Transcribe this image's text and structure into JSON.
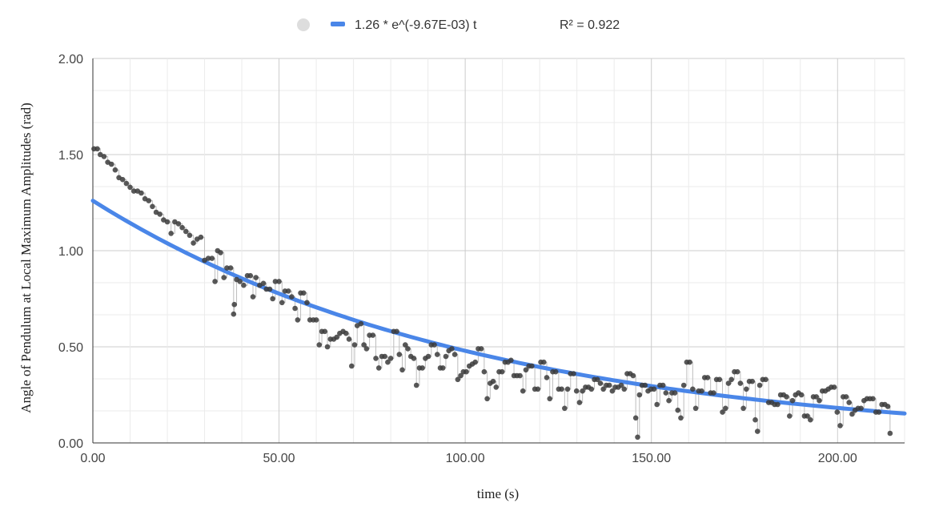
{
  "chart_data": {
    "type": "scatter",
    "title": "",
    "xlabel": "time (s)",
    "ylabel": "Angle of Pendulum at Local Maximum Amplitudes (rad)",
    "xlim": [
      0,
      218
    ],
    "ylim": [
      0,
      2
    ],
    "x_ticks": [
      0,
      50,
      100,
      150,
      200
    ],
    "x_tick_labels": [
      "0.00",
      "50.00",
      "100.00",
      "150.00",
      "200.00"
    ],
    "y_ticks": [
      0,
      0.5,
      1,
      1.5,
      2
    ],
    "y_tick_labels": [
      "0.00",
      "0.50",
      "1.00",
      "1.50",
      "2.00"
    ],
    "grid": true,
    "legend_position": "top",
    "legend": {
      "series_label": "",
      "trendline_label": "1.26 * e^(-9.67E-03) t",
      "r_squared_label": "R² = 0.922"
    },
    "trendline": {
      "type": "exponential",
      "a": 1.26,
      "b": -0.00967,
      "color": "#4a86e8"
    },
    "series": [
      {
        "marker_color": "#3c3c3c",
        "points": [
          [
            0.3,
            1.53
          ],
          [
            1.2,
            1.53
          ],
          [
            2.0,
            1.5
          ],
          [
            3.0,
            1.49
          ],
          [
            4.0,
            1.46
          ],
          [
            5.0,
            1.45
          ],
          [
            6.0,
            1.42
          ],
          [
            7.0,
            1.38
          ],
          [
            8.0,
            1.37
          ],
          [
            9.0,
            1.35
          ],
          [
            10.0,
            1.33
          ],
          [
            11.0,
            1.31
          ],
          [
            12.0,
            1.31
          ],
          [
            13.0,
            1.3
          ],
          [
            14.0,
            1.27
          ],
          [
            15.0,
            1.26
          ],
          [
            16.0,
            1.23
          ],
          [
            17.0,
            1.2
          ],
          [
            18.0,
            1.19
          ],
          [
            19.0,
            1.16
          ],
          [
            20.0,
            1.15
          ],
          [
            21.0,
            1.09
          ],
          [
            22.0,
            1.15
          ],
          [
            23.0,
            1.14
          ],
          [
            24.0,
            1.12
          ],
          [
            25.0,
            1.1
          ],
          [
            26.0,
            1.08
          ],
          [
            27.0,
            1.04
          ],
          [
            28.0,
            1.06
          ],
          [
            29.0,
            1.07
          ],
          [
            30.0,
            0.95
          ],
          [
            31.0,
            0.96
          ],
          [
            32.0,
            0.96
          ],
          [
            32.8,
            0.84
          ],
          [
            33.5,
            1.0
          ],
          [
            34.3,
            0.99
          ],
          [
            35.2,
            0.86
          ],
          [
            36.0,
            0.91
          ],
          [
            37.0,
            0.91
          ],
          [
            37.8,
            0.67
          ],
          [
            38.0,
            0.72
          ],
          [
            38.6,
            0.85
          ],
          [
            39.5,
            0.84
          ],
          [
            40.5,
            0.82
          ],
          [
            41.5,
            0.87
          ],
          [
            42.3,
            0.87
          ],
          [
            43.0,
            0.76
          ],
          [
            43.8,
            0.86
          ],
          [
            44.8,
            0.82
          ],
          [
            45.8,
            0.83
          ],
          [
            46.6,
            0.8
          ],
          [
            47.5,
            0.8
          ],
          [
            48.3,
            0.75
          ],
          [
            49.0,
            0.84
          ],
          [
            50.0,
            0.84
          ],
          [
            50.8,
            0.73
          ],
          [
            51.6,
            0.79
          ],
          [
            52.5,
            0.79
          ],
          [
            53.4,
            0.76
          ],
          [
            54.3,
            0.7
          ],
          [
            55.0,
            0.64
          ],
          [
            55.8,
            0.78
          ],
          [
            56.6,
            0.78
          ],
          [
            57.5,
            0.73
          ],
          [
            58.3,
            0.64
          ],
          [
            59.2,
            0.64
          ],
          [
            60.0,
            0.64
          ],
          [
            60.8,
            0.51
          ],
          [
            61.5,
            0.58
          ],
          [
            62.3,
            0.58
          ],
          [
            63.0,
            0.5
          ],
          [
            63.8,
            0.54
          ],
          [
            64.7,
            0.54
          ],
          [
            65.5,
            0.55
          ],
          [
            66.3,
            0.57
          ],
          [
            67.2,
            0.58
          ],
          [
            68.0,
            0.57
          ],
          [
            68.8,
            0.54
          ],
          [
            69.5,
            0.4
          ],
          [
            70.3,
            0.51
          ],
          [
            71.0,
            0.61
          ],
          [
            72.0,
            0.62
          ],
          [
            72.8,
            0.51
          ],
          [
            73.5,
            0.49
          ],
          [
            74.3,
            0.56
          ],
          [
            75.2,
            0.56
          ],
          [
            76.0,
            0.44
          ],
          [
            76.8,
            0.39
          ],
          [
            77.6,
            0.45
          ],
          [
            78.4,
            0.45
          ],
          [
            79.2,
            0.42
          ],
          [
            80.0,
            0.44
          ],
          [
            80.8,
            0.58
          ],
          [
            81.6,
            0.58
          ],
          [
            82.3,
            0.46
          ],
          [
            83.1,
            0.38
          ],
          [
            83.9,
            0.51
          ],
          [
            84.6,
            0.49
          ],
          [
            85.4,
            0.45
          ],
          [
            86.2,
            0.44
          ],
          [
            86.9,
            0.3
          ],
          [
            87.7,
            0.39
          ],
          [
            88.5,
            0.39
          ],
          [
            89.3,
            0.44
          ],
          [
            90.1,
            0.45
          ],
          [
            90.9,
            0.51
          ],
          [
            91.7,
            0.51
          ],
          [
            92.5,
            0.46
          ],
          [
            93.3,
            0.39
          ],
          [
            94.0,
            0.39
          ],
          [
            94.8,
            0.45
          ],
          [
            95.6,
            0.48
          ],
          [
            96.4,
            0.49
          ],
          [
            97.2,
            0.46
          ],
          [
            98.0,
            0.33
          ],
          [
            98.8,
            0.35
          ],
          [
            99.5,
            0.37
          ],
          [
            100.3,
            0.37
          ],
          [
            101.1,
            0.4
          ],
          [
            101.9,
            0.41
          ],
          [
            102.7,
            0.42
          ],
          [
            103.5,
            0.49
          ],
          [
            104.3,
            0.49
          ],
          [
            105.1,
            0.37
          ],
          [
            105.9,
            0.23
          ],
          [
            106.7,
            0.31
          ],
          [
            107.5,
            0.32
          ],
          [
            108.3,
            0.29
          ],
          [
            109.1,
            0.37
          ],
          [
            109.9,
            0.37
          ],
          [
            110.7,
            0.42
          ],
          [
            111.5,
            0.42
          ],
          [
            112.3,
            0.43
          ],
          [
            113.1,
            0.35
          ],
          [
            113.9,
            0.35
          ],
          [
            114.7,
            0.35
          ],
          [
            115.5,
            0.27
          ],
          [
            116.3,
            0.38
          ],
          [
            117.1,
            0.4
          ],
          [
            117.9,
            0.4
          ],
          [
            118.7,
            0.28
          ],
          [
            119.5,
            0.28
          ],
          [
            120.3,
            0.42
          ],
          [
            121.1,
            0.42
          ],
          [
            121.9,
            0.34
          ],
          [
            122.7,
            0.23
          ],
          [
            123.5,
            0.37
          ],
          [
            124.3,
            0.37
          ],
          [
            125.1,
            0.28
          ],
          [
            125.9,
            0.28
          ],
          [
            126.7,
            0.18
          ],
          [
            127.5,
            0.28
          ],
          [
            128.3,
            0.36
          ],
          [
            129.1,
            0.36
          ],
          [
            129.9,
            0.27
          ],
          [
            130.7,
            0.21
          ],
          [
            131.5,
            0.27
          ],
          [
            132.3,
            0.29
          ],
          [
            133.1,
            0.29
          ],
          [
            133.9,
            0.28
          ],
          [
            134.7,
            0.33
          ],
          [
            135.5,
            0.33
          ],
          [
            136.3,
            0.31
          ],
          [
            137.1,
            0.28
          ],
          [
            137.9,
            0.3
          ],
          [
            138.7,
            0.3
          ],
          [
            139.5,
            0.27
          ],
          [
            140.3,
            0.29
          ],
          [
            141.1,
            0.29
          ],
          [
            141.9,
            0.3
          ],
          [
            142.7,
            0.28
          ],
          [
            143.5,
            0.36
          ],
          [
            144.3,
            0.36
          ],
          [
            145.1,
            0.35
          ],
          [
            145.8,
            0.13
          ],
          [
            146.3,
            0.03
          ],
          [
            146.8,
            0.25
          ],
          [
            147.5,
            0.3
          ],
          [
            148.3,
            0.3
          ],
          [
            149.1,
            0.27
          ],
          [
            149.9,
            0.28
          ],
          [
            150.7,
            0.28
          ],
          [
            151.5,
            0.2
          ],
          [
            152.3,
            0.3
          ],
          [
            153.1,
            0.3
          ],
          [
            153.9,
            0.26
          ],
          [
            154.7,
            0.22
          ],
          [
            155.5,
            0.26
          ],
          [
            156.3,
            0.26
          ],
          [
            157.1,
            0.17
          ],
          [
            157.9,
            0.13
          ],
          [
            158.7,
            0.3
          ],
          [
            159.5,
            0.42
          ],
          [
            160.3,
            0.42
          ],
          [
            161.1,
            0.28
          ],
          [
            161.9,
            0.18
          ],
          [
            162.7,
            0.27
          ],
          [
            163.5,
            0.27
          ],
          [
            164.3,
            0.34
          ],
          [
            165.1,
            0.34
          ],
          [
            165.9,
            0.26
          ],
          [
            166.7,
            0.26
          ],
          [
            167.5,
            0.33
          ],
          [
            168.3,
            0.33
          ],
          [
            169.1,
            0.16
          ],
          [
            169.9,
            0.18
          ],
          [
            170.7,
            0.31
          ],
          [
            171.5,
            0.33
          ],
          [
            172.3,
            0.37
          ],
          [
            173.1,
            0.37
          ],
          [
            173.9,
            0.31
          ],
          [
            174.7,
            0.18
          ],
          [
            175.5,
            0.28
          ],
          [
            176.3,
            0.32
          ],
          [
            177.1,
            0.32
          ],
          [
            177.9,
            0.12
          ],
          [
            178.5,
            0.06
          ],
          [
            179.1,
            0.3
          ],
          [
            179.9,
            0.33
          ],
          [
            180.7,
            0.33
          ],
          [
            181.5,
            0.21
          ],
          [
            182.3,
            0.21
          ],
          [
            183.1,
            0.2
          ],
          [
            183.9,
            0.2
          ],
          [
            184.7,
            0.25
          ],
          [
            185.5,
            0.25
          ],
          [
            186.3,
            0.24
          ],
          [
            187.1,
            0.14
          ],
          [
            187.9,
            0.22
          ],
          [
            188.7,
            0.25
          ],
          [
            189.5,
            0.26
          ],
          [
            190.3,
            0.25
          ],
          [
            191.1,
            0.14
          ],
          [
            191.9,
            0.14
          ],
          [
            192.7,
            0.12
          ],
          [
            193.5,
            0.24
          ],
          [
            194.3,
            0.24
          ],
          [
            195.1,
            0.22
          ],
          [
            195.9,
            0.27
          ],
          [
            196.7,
            0.27
          ],
          [
            197.5,
            0.28
          ],
          [
            198.3,
            0.29
          ],
          [
            199.1,
            0.29
          ],
          [
            199.9,
            0.16
          ],
          [
            200.7,
            0.09
          ],
          [
            201.5,
            0.24
          ],
          [
            202.3,
            0.24
          ],
          [
            203.1,
            0.21
          ],
          [
            203.9,
            0.15
          ],
          [
            204.7,
            0.17
          ],
          [
            205.5,
            0.18
          ],
          [
            206.3,
            0.18
          ],
          [
            207.1,
            0.22
          ],
          [
            207.9,
            0.23
          ],
          [
            208.7,
            0.23
          ],
          [
            209.5,
            0.23
          ],
          [
            210.3,
            0.16
          ],
          [
            211.1,
            0.16
          ],
          [
            211.9,
            0.2
          ],
          [
            212.7,
            0.2
          ],
          [
            213.5,
            0.19
          ],
          [
            214.1,
            0.05
          ]
        ]
      }
    ]
  }
}
